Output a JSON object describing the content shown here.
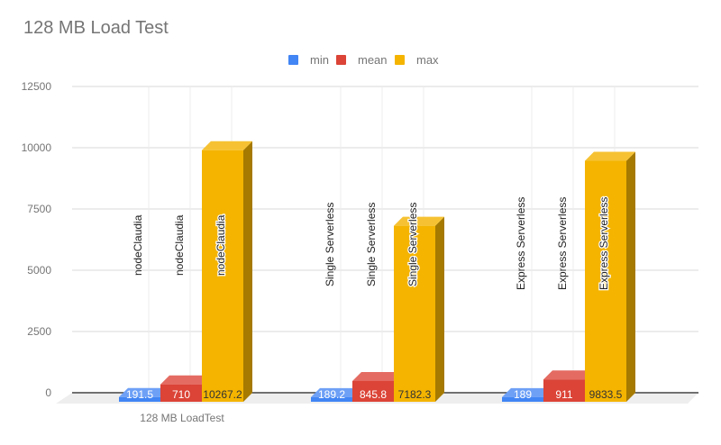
{
  "title": "128 MB Load Test",
  "legend": [
    {
      "label": "min",
      "color": "#4285f4"
    },
    {
      "label": "mean",
      "color": "#db4437"
    },
    {
      "label": "max",
      "color": "#f4b400"
    }
  ],
  "y_ticks": [
    "12500",
    "10000",
    "7500",
    "5000",
    "2500",
    "0"
  ],
  "x_label": "128 MB LoadTest",
  "chart_data": {
    "type": "bar",
    "title": "128 MB Load Test",
    "xlabel": "128 MB LoadTest",
    "ylabel": "",
    "ylim": [
      0,
      12500
    ],
    "y_ticks": [
      0,
      2500,
      5000,
      7500,
      10000,
      12500
    ],
    "grid": true,
    "legend_position": "top",
    "style": "3d-grouped",
    "groups": [
      "nodeClaudia",
      "Single Serverless",
      "Express Serverless"
    ],
    "series": [
      {
        "name": "min",
        "color": "#4285f4",
        "values": [
          191.5,
          189.2,
          189
        ]
      },
      {
        "name": "mean",
        "color": "#db4437",
        "values": [
          710,
          845.8,
          911
        ]
      },
      {
        "name": "max",
        "color": "#f4b400",
        "values": [
          10267.2,
          7182.3,
          9833.5
        ]
      }
    ],
    "bar_labels": [
      [
        "nodeClaudia",
        "nodeClaudia",
        "nodeClaudia"
      ],
      [
        "Single Serverless",
        "Single Serverless",
        "Single Serverless"
      ],
      [
        "Express Serverless",
        "Express Serverless",
        "Express Serverless"
      ]
    ]
  }
}
